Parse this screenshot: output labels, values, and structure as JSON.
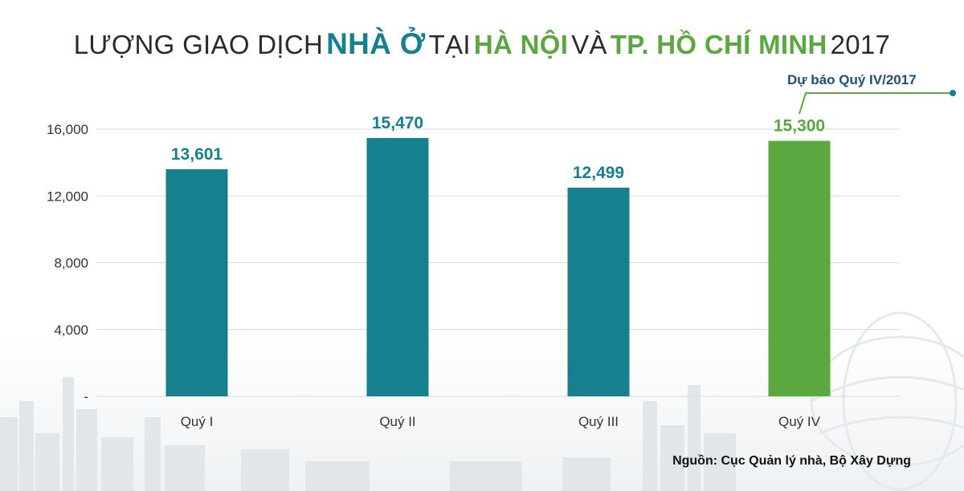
{
  "title": {
    "part1": "LƯỢNG GIAO DỊCH",
    "part2": "NHÀ Ở",
    "part3": "TẠI",
    "part4": "HÀ NỘI",
    "part5": "VÀ",
    "part6": "TP. HỒ CHÍ MINH",
    "part7": "2017"
  },
  "forecast_label": "Dự báo Quý IV/2017",
  "source": "Nguồn: Cục Quản lý nhà, Bộ Xây Dựng",
  "colors": {
    "actual": "#16808f",
    "forecast": "#5aa83f",
    "forecast_label": "#1d4f7a",
    "grid": "#d9d9d9"
  },
  "chart_data": {
    "type": "bar",
    "categories": [
      "Quý I",
      "Quý II",
      "Quý III",
      "Quý IV"
    ],
    "values": [
      13601,
      15470,
      12499,
      15300
    ],
    "value_labels": [
      "13,601",
      "15,470",
      "12,499",
      "15,300"
    ],
    "forecast_flags": [
      false,
      false,
      false,
      true
    ],
    "ylim": [
      0,
      16000
    ],
    "yticks": [
      0,
      4000,
      8000,
      12000,
      16000
    ],
    "ytick_labels": [
      "-",
      "4,000",
      "8,000",
      "12,000",
      "16,000"
    ],
    "grid": true,
    "legend": "none"
  }
}
